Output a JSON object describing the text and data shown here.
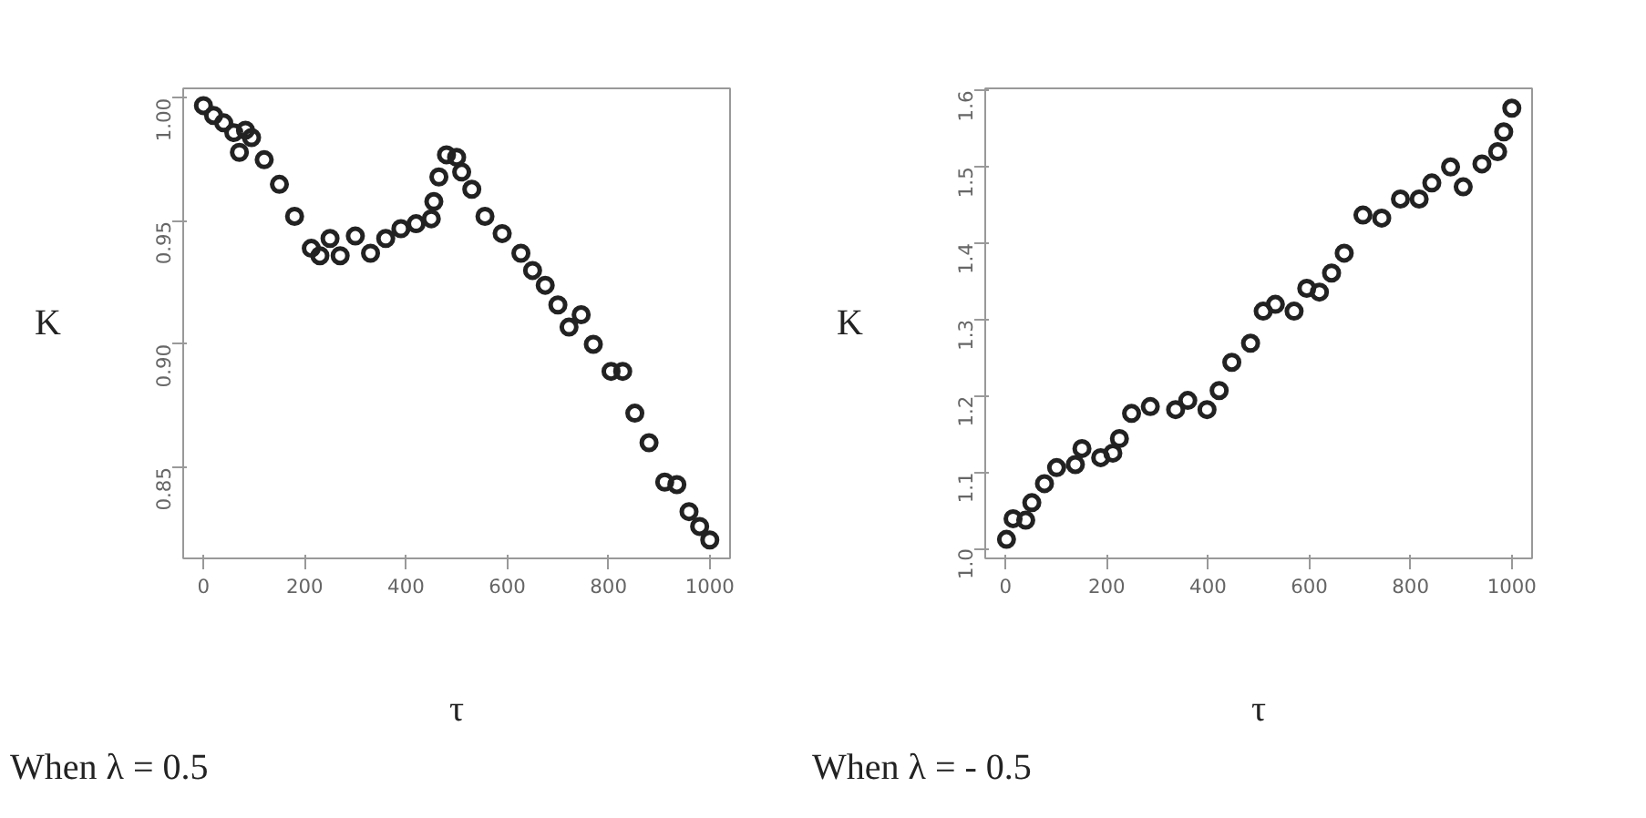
{
  "chart_data": [
    {
      "type": "scatter",
      "xlabel": "τ",
      "ylabel": "K",
      "annotations": [
        "When λ = 0.5"
      ],
      "marker": "circle",
      "grid": false,
      "xlim": [
        -40,
        1040
      ],
      "ylim": [
        0.813,
        1.004
      ],
      "xticks": [
        0,
        200,
        400,
        600,
        800,
        1000
      ],
      "yticks": [
        {
          "value": 0.85,
          "label": "0.85"
        },
        {
          "value": 0.9,
          "label": "0.90"
        },
        {
          "value": 0.95,
          "label": "0.95"
        },
        {
          "value": 1.0,
          "label": "1.00"
        }
      ],
      "series": [
        {
          "color": "#222222",
          "x": [
            0,
            20,
            40,
            60,
            71,
            83,
            95,
            120,
            150,
            180,
            213,
            230,
            250,
            270,
            300,
            330,
            360,
            390,
            420,
            450,
            455,
            465,
            480,
            500,
            510,
            530,
            556,
            590,
            627,
            650,
            675,
            700,
            722,
            746,
            770,
            805,
            828,
            852,
            880,
            911,
            935,
            959,
            980,
            1000
          ],
          "values": [
            0.997,
            0.993,
            0.99,
            0.986,
            0.978,
            0.987,
            0.984,
            0.975,
            0.965,
            0.952,
            0.939,
            0.936,
            0.943,
            0.936,
            0.944,
            0.937,
            0.943,
            0.947,
            0.949,
            0.951,
            0.958,
            0.968,
            0.977,
            0.976,
            0.97,
            0.963,
            0.952,
            0.945,
            0.937,
            0.93,
            0.924,
            0.916,
            0.907,
            0.912,
            0.9,
            0.889,
            0.889,
            0.872,
            0.86,
            0.844,
            0.843,
            0.832,
            0.826,
            0.8205
          ]
        }
      ]
    },
    {
      "type": "scatter",
      "xlabel": "τ",
      "ylabel": "K",
      "annotations": [
        "When λ = - 0.5"
      ],
      "marker": "circle",
      "grid": false,
      "xlim": [
        -40,
        1040
      ],
      "ylim": [
        0.987,
        1.603
      ],
      "xticks": [
        0,
        200,
        400,
        600,
        800,
        1000
      ],
      "yticks": [
        {
          "value": 1.0,
          "label": "1.0"
        },
        {
          "value": 1.1,
          "label": "1.1"
        },
        {
          "value": 1.2,
          "label": "1.2"
        },
        {
          "value": 1.3,
          "label": "1.3"
        },
        {
          "value": 1.4,
          "label": "1.4"
        },
        {
          "value": 1.5,
          "label": "1.5"
        },
        {
          "value": 1.6,
          "label": "1.6"
        }
      ],
      "series": [
        {
          "color": "#222222",
          "x": [
            2,
            15,
            40,
            52,
            77,
            101,
            138,
            151,
            188,
            212,
            225,
            249,
            286,
            336,
            360,
            398,
            422,
            447,
            484,
            509,
            533,
            570,
            595,
            620,
            644,
            669,
            706,
            743,
            780,
            817,
            842,
            879,
            904,
            941,
            972,
            984,
            1000
          ],
          "values": [
            1.012,
            1.039,
            1.037,
            1.06,
            1.085,
            1.106,
            1.11,
            1.131,
            1.119,
            1.125,
            1.144,
            1.177,
            1.186,
            1.182,
            1.194,
            1.182,
            1.207,
            1.244,
            1.269,
            1.311,
            1.32,
            1.311,
            1.341,
            1.336,
            1.361,
            1.387,
            1.437,
            1.433,
            1.458,
            1.458,
            1.479,
            1.5,
            1.474,
            1.504,
            1.52,
            1.546,
            1.577
          ]
        }
      ]
    }
  ]
}
